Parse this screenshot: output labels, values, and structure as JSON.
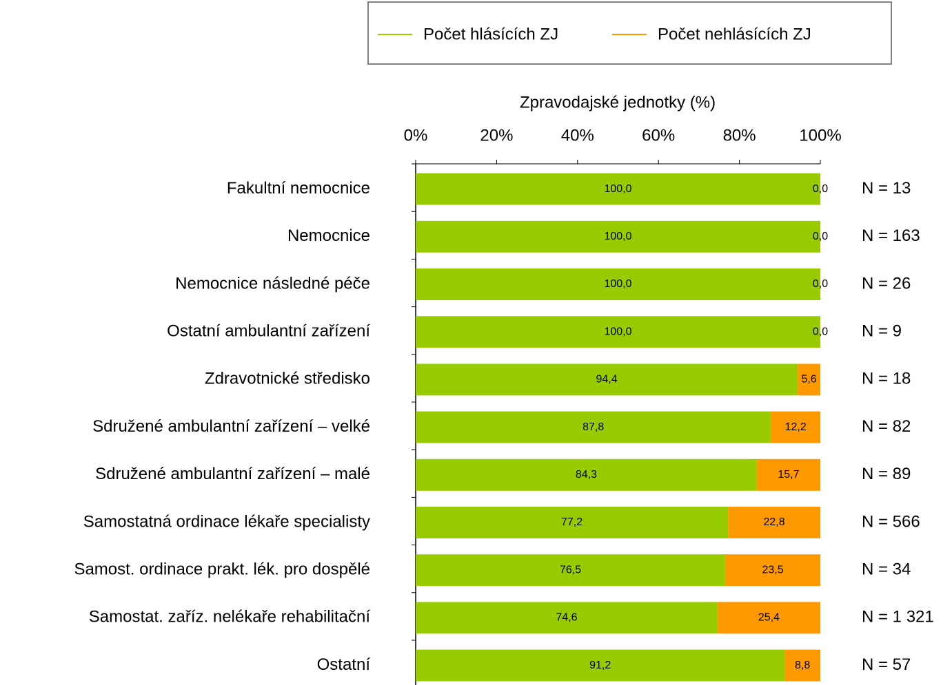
{
  "chart_data": {
    "type": "stacked_barh",
    "x_label": "Zpravodajské jednotky (%)",
    "categories": [
      "Fakultní nemocnice",
      "Nemocnice",
      "Nemocnice následné péče",
      "Ostatní ambulantní zařízení",
      "Zdravotnické středisko",
      "Sdružené ambulantní zařízení – velké",
      "Sdružené ambulantní zařízení – malé",
      "Samostatná ordinace lékaře specialisty",
      "Samost. ordinace prakt. lék. pro dospělé",
      "Samostat. zaříz. nelékaře rehabilitační",
      "Ostatní"
    ],
    "series": [
      {
        "name": "Počet hlásících ZJ",
        "color": "#99cc00",
        "values": [
          100.0,
          100.0,
          100.0,
          100.0,
          94.4,
          87.8,
          84.3,
          77.2,
          76.5,
          74.6,
          91.2
        ],
        "value_labels": [
          "100,0",
          "100,0",
          "100,0",
          "100,0",
          "94,4",
          "87,8",
          "84,3",
          "77,2",
          "76,5",
          "74,6",
          "91,2"
        ]
      },
      {
        "name": "Počet nehlásících ZJ",
        "color": "#ff9900",
        "values": [
          0.0,
          0.0,
          0.0,
          0.0,
          5.6,
          12.2,
          15.7,
          22.8,
          23.5,
          25.4,
          8.8
        ],
        "value_labels": [
          "0,0",
          "0,0",
          "0,0",
          "0,0",
          "5,6",
          "12,2",
          "15,7",
          "22,8",
          "23,5",
          "25,4",
          "8,8"
        ]
      }
    ],
    "annotations": [
      "N = 13",
      "N = 163",
      "N = 26",
      "N = 9",
      "N = 18",
      "N = 82",
      "N = 89",
      "N = 566",
      "N = 34",
      "N = 1 321",
      "N = 57"
    ],
    "xlim": [
      0,
      100
    ],
    "xticks": [
      {
        "value": 0,
        "label": "0%"
      },
      {
        "value": 20,
        "label": "20%"
      },
      {
        "value": 40,
        "label": "40%"
      },
      {
        "value": 60,
        "label": "60%"
      },
      {
        "value": 80,
        "label": "80%"
      },
      {
        "value": 100,
        "label": "100%"
      }
    ],
    "legend": "top"
  }
}
